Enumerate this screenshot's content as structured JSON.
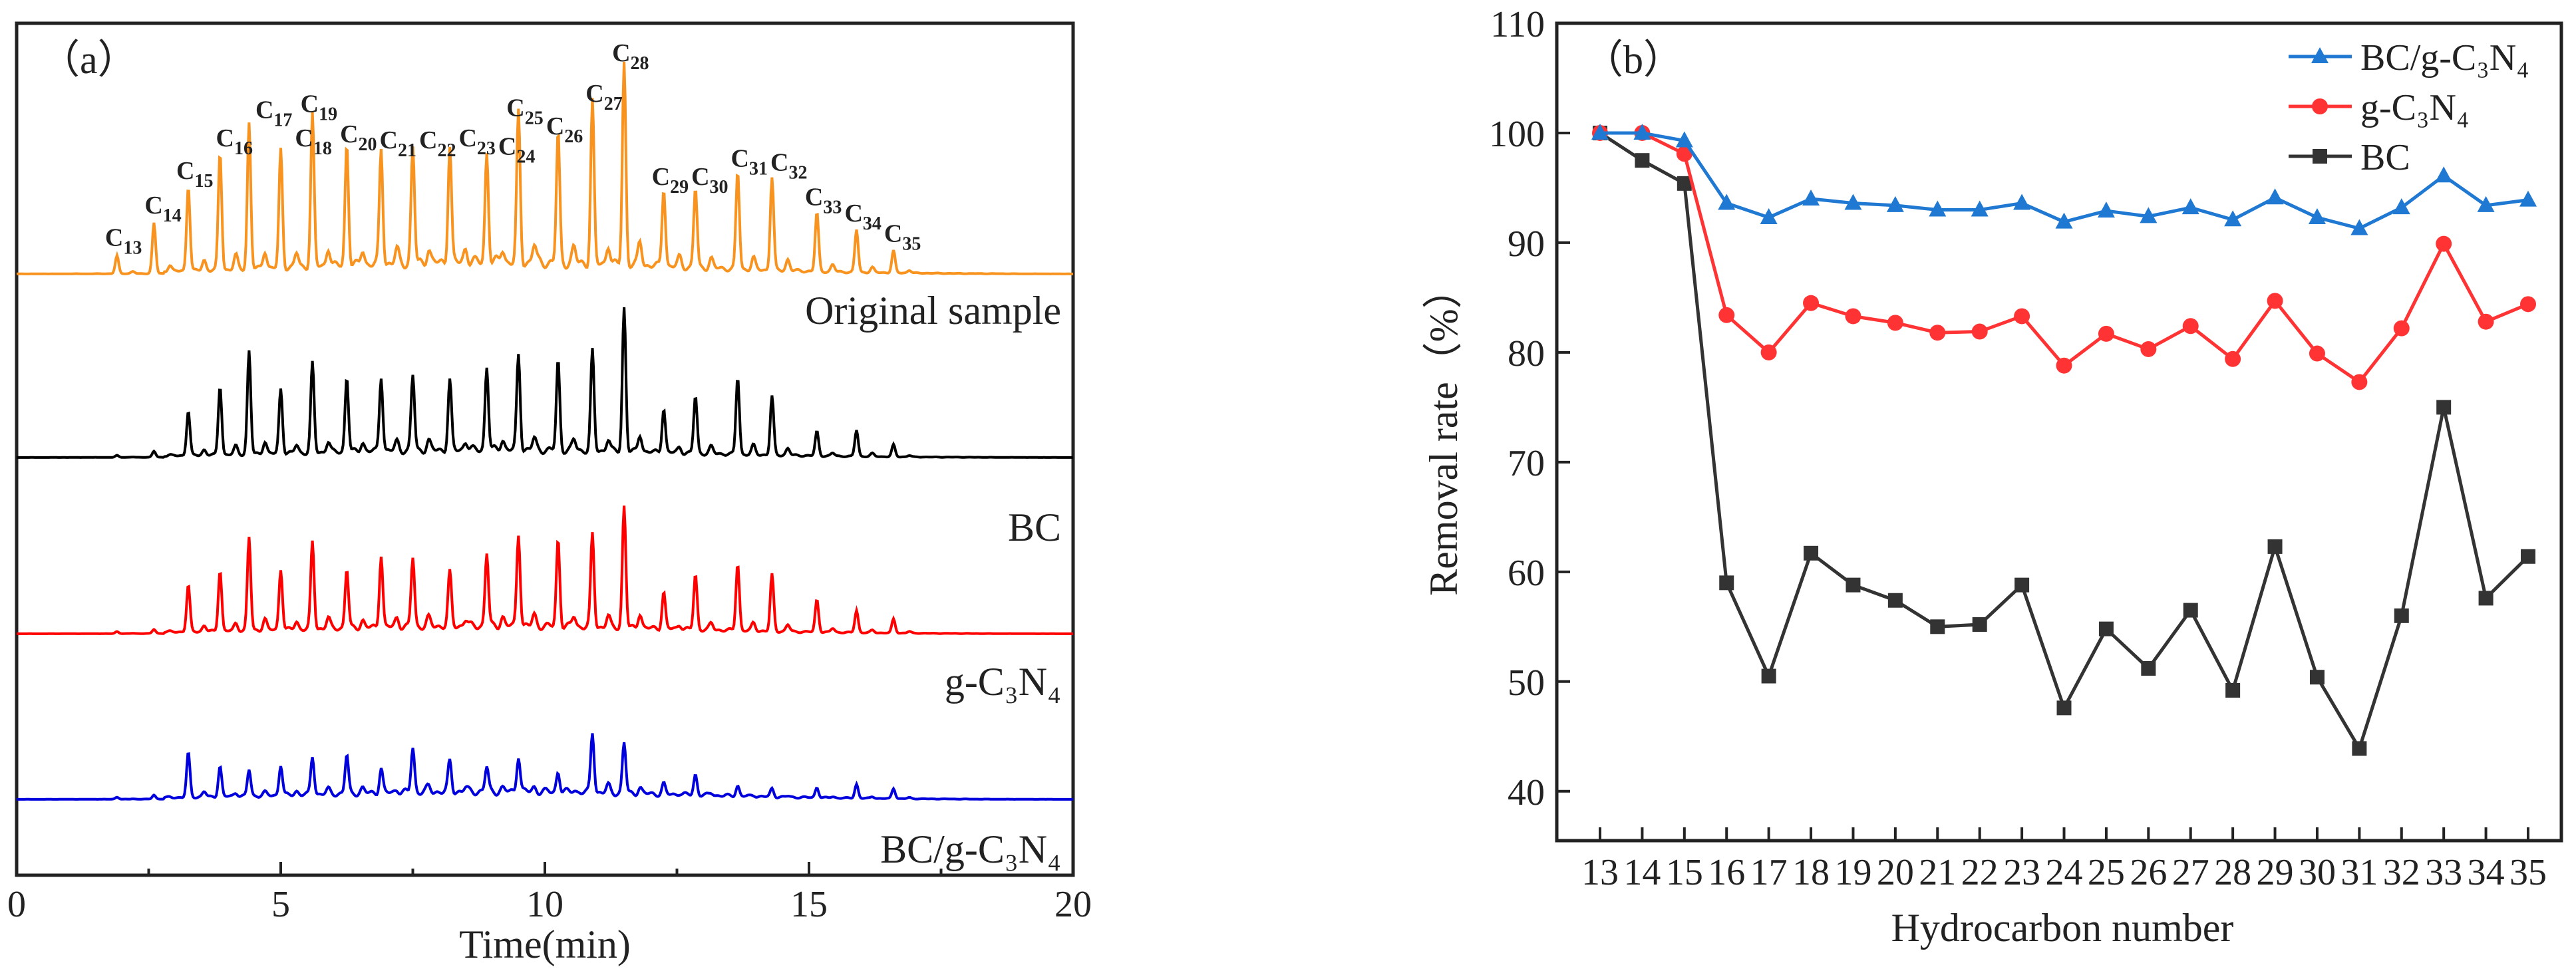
{
  "chart_data": [
    {
      "type": "line",
      "panel_label": "（a）",
      "title": "",
      "xlabel": "Time(min)",
      "ylabel": "",
      "xlim": [
        0,
        20
      ],
      "xticks": [
        "0",
        "5",
        "10",
        "15",
        "20"
      ],
      "y_units": "relative intensity (arbitrary, stacked traces)",
      "peak_labels": [
        "C13",
        "C14",
        "C15",
        "C16",
        "C17",
        "C18",
        "C19",
        "C20",
        "C21",
        "C22",
        "C23",
        "C24",
        "C25",
        "C26",
        "C27",
        "C28",
        "C29",
        "C30",
        "C31",
        "C32",
        "C33",
        "C34",
        "C35"
      ],
      "peak_times": [
        1.9,
        2.6,
        3.25,
        3.85,
        4.4,
        5.0,
        5.6,
        6.25,
        6.9,
        7.5,
        8.2,
        8.9,
        9.5,
        10.25,
        10.9,
        11.5,
        12.25,
        12.85,
        13.65,
        14.3,
        15.15,
        15.9,
        16.6
      ],
      "series": [
        {
          "name": "Original sample",
          "label": "Original sample",
          "color": "#f7931e",
          "peak_heights": [
            9,
            25,
            42,
            58,
            72,
            58,
            75,
            60,
            57,
            57,
            58,
            54,
            73,
            64,
            80,
            100,
            39,
            39,
            48,
            46,
            29,
            21,
            11
          ]
        },
        {
          "name": "BC",
          "label": "BC",
          "color": "#000000",
          "peak_heights": [
            1,
            3,
            22,
            34,
            51,
            32,
            44,
            37,
            37,
            37,
            34,
            41,
            47,
            44,
            49,
            71,
            22,
            28,
            38,
            29,
            12,
            13,
            6
          ]
        },
        {
          "name": "g-C3N4",
          "label": "g-C₃N₄",
          "color": "#ff0000",
          "peak_heights": [
            1,
            2,
            23,
            30,
            46,
            30,
            43,
            29,
            36,
            34,
            26,
            36,
            46,
            43,
            46,
            60,
            18,
            27,
            33,
            28,
            16,
            11,
            7
          ]
        },
        {
          "name": "BC/g-C3N4",
          "label": "BC/g-C₃N₄",
          "color": "#0000dd",
          "peak_heights": [
            1,
            2,
            22,
            15,
            13,
            15,
            19,
            19,
            12,
            22,
            15,
            12,
            18,
            10,
            30,
            25,
            5,
            10,
            5,
            4,
            5,
            7,
            5
          ]
        }
      ]
    },
    {
      "type": "line",
      "panel_label": "（b）",
      "title": "",
      "xlabel": "Hydrocarbon number",
      "ylabel": "Removal rate（%）",
      "ylim": [
        35.5,
        110
      ],
      "yticks": [
        "40",
        "50",
        "60",
        "70",
        "80",
        "90",
        "100",
        "110"
      ],
      "x": [
        13,
        14,
        15,
        16,
        17,
        18,
        19,
        20,
        21,
        22,
        23,
        24,
        25,
        26,
        27,
        28,
        29,
        30,
        31,
        32,
        33,
        34,
        35
      ],
      "legend_position": "top-right",
      "series": [
        {
          "name": "BC/g-C3N4",
          "label": "BC/g-C₃N₄",
          "color": "#1f78d1",
          "marker": "triangle",
          "values": [
            100,
            100,
            99.3,
            93.6,
            92.3,
            94.0,
            93.6,
            93.4,
            93.0,
            93.0,
            93.6,
            91.9,
            92.9,
            92.4,
            93.2,
            92.1,
            94.1,
            92.3,
            91.3,
            93.2,
            96.1,
            93.4,
            93.9
          ]
        },
        {
          "name": "g-C3N4",
          "label": "g-C₃N₄",
          "color": "#ff3333",
          "marker": "circle",
          "values": [
            100,
            100,
            98.1,
            83.4,
            80.0,
            84.5,
            83.3,
            82.7,
            81.8,
            81.9,
            83.3,
            78.8,
            81.7,
            80.3,
            82.4,
            79.4,
            84.7,
            79.9,
            77.3,
            82.2,
            89.9,
            82.8,
            84.4
          ]
        },
        {
          "name": "BC",
          "label": "BC",
          "color": "#333333",
          "marker": "square",
          "values": [
            100,
            97.5,
            95.4,
            59.0,
            50.5,
            61.7,
            58.8,
            57.4,
            55.0,
            55.2,
            58.8,
            47.6,
            54.8,
            51.2,
            56.5,
            49.2,
            62.3,
            50.4,
            43.9,
            56.0,
            75.0,
            57.6,
            61.4
          ]
        }
      ]
    }
  ]
}
